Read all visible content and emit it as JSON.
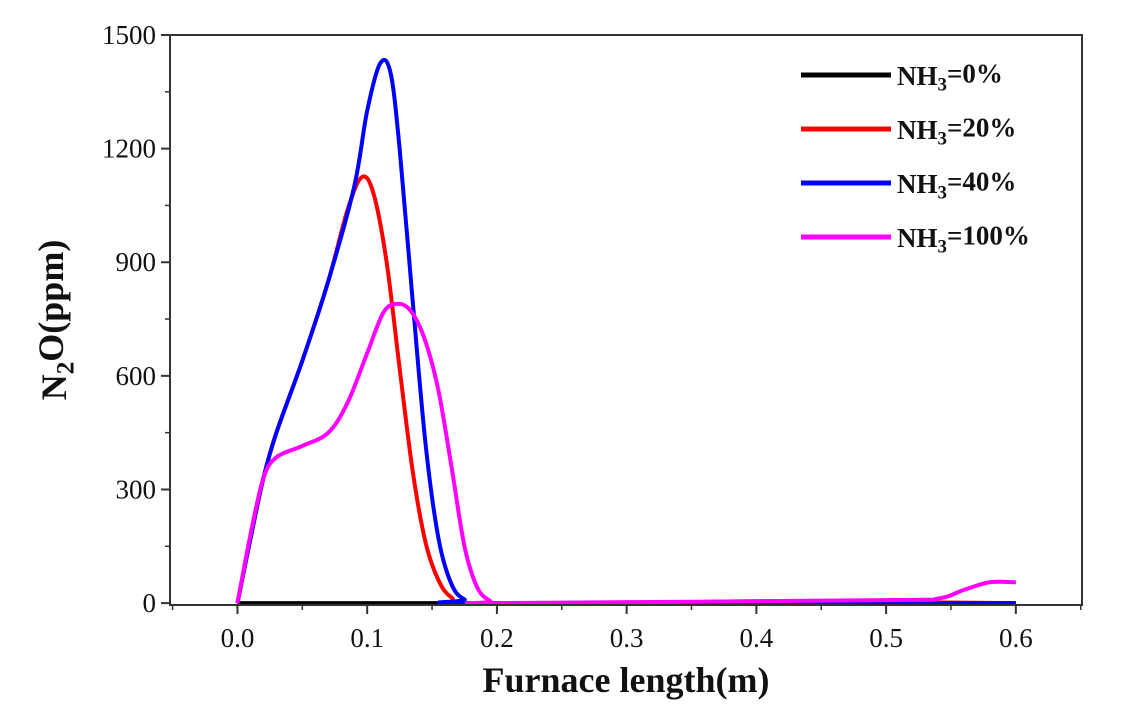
{
  "chart_data": {
    "type": "line",
    "title": "",
    "xlabel": "Furnace length(m)",
    "ylabel": "N2O(ppm)",
    "xlim": [
      -0.052,
      0.651
    ],
    "ylim": [
      -5,
      1500
    ],
    "xticks": [
      0.0,
      0.1,
      0.2,
      0.3,
      0.4,
      0.5,
      0.6
    ],
    "xtick_labels": [
      "0.0",
      "0.1",
      "0.2",
      "0.3",
      "0.4",
      "0.5",
      "0.6"
    ],
    "yticks": [
      0,
      300,
      600,
      900,
      1200,
      1500
    ],
    "ytick_labels": [
      "0",
      "300",
      "600",
      "900",
      "1200",
      "1500"
    ],
    "grid": false,
    "legend_position": "top-right",
    "series": [
      {
        "name": "NH3=0%",
        "color": "#000000",
        "points": [
          [
            0,
            0
          ],
          [
            0.6,
            0
          ]
        ]
      },
      {
        "name": "NH3=20%",
        "color": "#ff0000",
        "points": [
          [
            0,
            0
          ],
          [
            0.01,
            170
          ],
          [
            0.02,
            330
          ],
          [
            0.03,
            450
          ],
          [
            0.05,
            640
          ],
          [
            0.07,
            850
          ],
          [
            0.085,
            1040
          ],
          [
            0.096,
            1125
          ],
          [
            0.105,
            1080
          ],
          [
            0.115,
            900
          ],
          [
            0.125,
            620
          ],
          [
            0.135,
            350
          ],
          [
            0.145,
            160
          ],
          [
            0.155,
            60
          ],
          [
            0.165,
            15
          ],
          [
            0.18,
            0
          ],
          [
            0.3,
            0
          ],
          [
            0.4,
            5
          ],
          [
            0.5,
            3
          ],
          [
            0.6,
            0
          ]
        ]
      },
      {
        "name": "NH3=40%",
        "color": "#0000ff",
        "points": [
          [
            0,
            0
          ],
          [
            0.01,
            170
          ],
          [
            0.02,
            330
          ],
          [
            0.03,
            450
          ],
          [
            0.05,
            640
          ],
          [
            0.07,
            850
          ],
          [
            0.09,
            1100
          ],
          [
            0.1,
            1300
          ],
          [
            0.11,
            1425
          ],
          [
            0.118,
            1400
          ],
          [
            0.125,
            1200
          ],
          [
            0.135,
            800
          ],
          [
            0.145,
            420
          ],
          [
            0.155,
            170
          ],
          [
            0.165,
            50
          ],
          [
            0.175,
            10
          ],
          [
            0.19,
            0
          ],
          [
            0.6,
            0
          ]
        ]
      },
      {
        "name": "NH3=100%",
        "color": "#ff00ff",
        "points": [
          [
            0,
            0
          ],
          [
            0.01,
            180
          ],
          [
            0.02,
            330
          ],
          [
            0.03,
            385
          ],
          [
            0.05,
            415
          ],
          [
            0.07,
            450
          ],
          [
            0.085,
            530
          ],
          [
            0.1,
            660
          ],
          [
            0.113,
            770
          ],
          [
            0.125,
            790
          ],
          [
            0.135,
            765
          ],
          [
            0.145,
            690
          ],
          [
            0.155,
            560
          ],
          [
            0.165,
            360
          ],
          [
            0.175,
            150
          ],
          [
            0.185,
            40
          ],
          [
            0.195,
            5
          ],
          [
            0.2,
            0
          ],
          [
            0.5,
            8
          ],
          [
            0.54,
            12
          ],
          [
            0.56,
            35
          ],
          [
            0.58,
            55
          ],
          [
            0.6,
            55
          ]
        ]
      }
    ]
  }
}
